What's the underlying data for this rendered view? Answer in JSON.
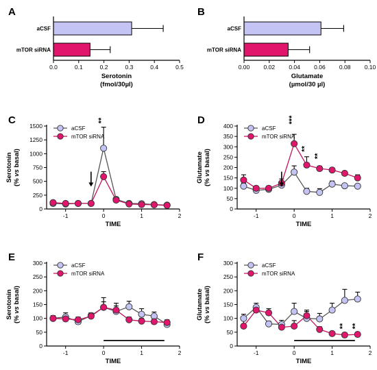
{
  "colors": {
    "acsf": "#c4c4f4",
    "mtor": "#e0166d",
    "acsf_line": "#555555",
    "mtor_line": "#c0145e",
    "axis": "#000000"
  },
  "chart_data": [
    {
      "id": "A",
      "letter": "A",
      "type": "bar",
      "orientation": "horizontal",
      "categories": [
        "aCSF",
        "mTOR siRNA"
      ],
      "values": [
        0.31,
        0.145
      ],
      "errors": [
        0.125,
        0.08
      ],
      "xlim": [
        0,
        0.5
      ],
      "xticks": [
        "0.0",
        "0.1",
        "0.2",
        "0.3",
        "0.4",
        "0.5"
      ],
      "xlabel": "Serotonin",
      "xlabel2": "(fmol/30µl)"
    },
    {
      "id": "B",
      "letter": "B",
      "type": "bar",
      "orientation": "horizontal",
      "categories": [
        "aCSF",
        "mTOR siRNA"
      ],
      "values": [
        0.061,
        0.035
      ],
      "errors": [
        0.018,
        0.017
      ],
      "xlim": [
        0,
        0.1
      ],
      "xticks": [
        "0.00",
        "0.02",
        "0.04",
        "0.06",
        "0.08",
        "0.10"
      ],
      "xlabel": "Glutamate",
      "xlabel2": "(µmol/30 µl)"
    },
    {
      "id": "C",
      "letter": "C",
      "type": "line",
      "ylabel": "Serotonin",
      "ylabel2": "(% vs basal)",
      "xlabel": "TIME",
      "ylim": [
        0,
        1500
      ],
      "yticks": [
        0,
        250,
        500,
        750,
        1000,
        1250,
        1500
      ],
      "xlim": [
        -1.5,
        2
      ],
      "xticks": [
        -1,
        0,
        1,
        2
      ],
      "legend": [
        "aCSF",
        "mTOR siRNA"
      ],
      "arrow_x": -0.33,
      "series": [
        {
          "name": "aCSF",
          "x": [
            -1.33,
            -1,
            -0.67,
            -0.33,
            0,
            0.33,
            0.67,
            1,
            1.33,
            1.67
          ],
          "y": [
            100,
            90,
            100,
            100,
            1100,
            175,
            100,
            95,
            80,
            70
          ],
          "err": [
            20,
            15,
            20,
            20,
            380,
            40,
            25,
            20,
            20,
            20
          ]
        },
        {
          "name": "mTOR siRNA",
          "x": [
            -1.33,
            -1,
            -0.67,
            -0.33,
            0,
            0.33,
            0.67,
            1,
            1.33,
            1.67
          ],
          "y": [
            115,
            100,
            100,
            100,
            585,
            160,
            90,
            80,
            75,
            65
          ],
          "err": [
            20,
            15,
            15,
            15,
            90,
            30,
            20,
            15,
            15,
            15
          ]
        }
      ],
      "annotations": [
        {
          "text": "**",
          "x": 0,
          "y": 1600
        }
      ]
    },
    {
      "id": "D",
      "letter": "D",
      "type": "line",
      "ylabel": "Glutamate",
      "ylabel2": "(% vs basal)",
      "xlabel": "TIME",
      "ylim": [
        0,
        400
      ],
      "yticks": [
        0,
        50,
        100,
        150,
        200,
        250,
        300,
        350,
        400
      ],
      "xlim": [
        -1.5,
        2
      ],
      "xticks": [
        -1,
        0,
        1,
        2
      ],
      "legend": [
        "aCSF",
        "mTOR siRNA"
      ],
      "arrow_x": -0.33,
      "series": [
        {
          "name": "aCSF",
          "x": [
            -1.33,
            -1,
            -0.67,
            -0.33,
            0,
            0.33,
            0.67,
            1,
            1.33,
            1.67
          ],
          "y": [
            110,
            90,
            95,
            115,
            178,
            85,
            80,
            120,
            112,
            110
          ],
          "err": [
            15,
            10,
            10,
            15,
            30,
            15,
            18,
            15,
            10,
            10
          ]
        },
        {
          "name": "mTOR siRNA",
          "x": [
            -1.33,
            -1,
            -0.67,
            -0.33,
            0,
            0.33,
            0.67,
            1,
            1.33,
            1.67
          ],
          "y": [
            140,
            100,
            100,
            125,
            315,
            212,
            195,
            188,
            172,
            150
          ],
          "err": [
            25,
            10,
            10,
            20,
            45,
            40,
            12,
            10,
            10,
            15
          ]
        }
      ],
      "annotations": [
        {
          "text": "***",
          "x": 0,
          "y": 430
        },
        {
          "text": "**",
          "x": 0.33,
          "y": 290
        },
        {
          "text": "**",
          "x": 0.67,
          "y": 255
        }
      ]
    },
    {
      "id": "E",
      "letter": "E",
      "type": "line",
      "ylabel": "Serotonin",
      "ylabel2": "(% vs basal)",
      "xlabel": "TIME",
      "ylim": [
        0,
        300
      ],
      "yticks": [
        0,
        50,
        100,
        150,
        200,
        250,
        300
      ],
      "xlim": [
        -1.5,
        2
      ],
      "xticks": [
        -1,
        0,
        1,
        2
      ],
      "legend": [
        "aCSF",
        "mTOR siRNA"
      ],
      "hbar": [
        0,
        1.6
      ],
      "series": [
        {
          "name": "aCSF",
          "x": [
            -1.33,
            -1,
            -0.67,
            -0.33,
            0,
            0.33,
            0.67,
            1,
            1.33,
            1.67
          ],
          "y": [
            100,
            105,
            88,
            110,
            140,
            125,
            142,
            115,
            108,
            78
          ],
          "err": [
            10,
            15,
            10,
            10,
            35,
            30,
            20,
            20,
            15,
            10
          ]
        },
        {
          "name": "mTOR siRNA",
          "x": [
            -1.33,
            -1,
            -0.67,
            -0.33,
            0,
            0.33,
            0.67,
            1,
            1.33,
            1.67
          ],
          "y": [
            100,
            98,
            95,
            108,
            140,
            130,
            95,
            90,
            88,
            85
          ],
          "err": [
            10,
            10,
            10,
            10,
            20,
            15,
            10,
            10,
            10,
            10
          ]
        }
      ],
      "annotations": []
    },
    {
      "id": "F",
      "letter": "F",
      "type": "line",
      "ylabel": "Glutamate",
      "ylabel2": "(% vs basal)",
      "xlabel": "TIME",
      "ylim": [
        0,
        300
      ],
      "yticks": [
        0,
        50,
        100,
        150,
        200,
        250,
        300
      ],
      "xlim": [
        -1.5,
        2
      ],
      "xticks": [
        -1,
        0,
        1,
        2
      ],
      "legend": [
        "aCSF",
        "mTOR siRNA"
      ],
      "hbar": [
        0,
        1.6
      ],
      "series": [
        {
          "name": "aCSF",
          "x": [
            -1.33,
            -1,
            -0.67,
            -0.33,
            0,
            0.33,
            0.67,
            1,
            1.33,
            1.67
          ],
          "y": [
            100,
            140,
            80,
            78,
            125,
            100,
            98,
            130,
            165,
            170
          ],
          "err": [
            15,
            15,
            10,
            15,
            30,
            30,
            20,
            25,
            40,
            25
          ]
        },
        {
          "name": "mTOR siRNA",
          "x": [
            -1.33,
            -1,
            -0.67,
            -0.33,
            0,
            0.33,
            0.67,
            1,
            1.33,
            1.67
          ],
          "y": [
            72,
            130,
            120,
            68,
            72,
            110,
            60,
            45,
            40,
            42
          ],
          "err": [
            20,
            15,
            15,
            10,
            20,
            15,
            10,
            8,
            8,
            8
          ]
        }
      ],
      "annotations": [
        {
          "text": "**",
          "x": 1.33,
          "y": 72
        },
        {
          "text": "**",
          "x": 1.67,
          "y": 72
        }
      ]
    }
  ]
}
